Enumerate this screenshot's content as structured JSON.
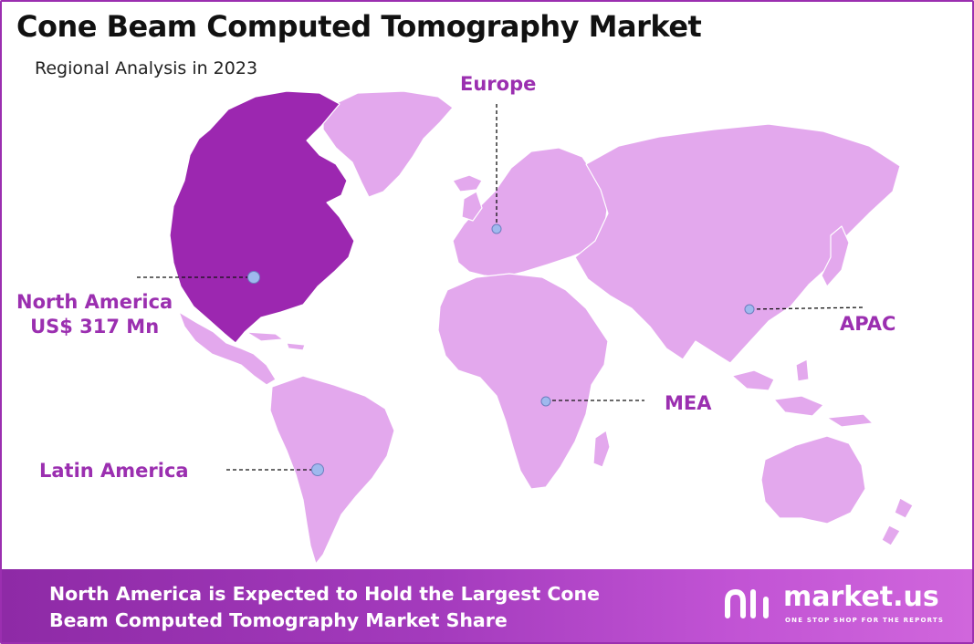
{
  "header": {
    "title": "Cone Beam Computed Tomography Market",
    "subtitle": "Regional Analysis in 2023"
  },
  "map": {
    "highlight_region": "North America",
    "colors": {
      "highlight": "#9c27b0",
      "land": "#e3a8ed",
      "marker": "#9fb9ee",
      "label": "#9b2fb0"
    },
    "regions": {
      "north_america": {
        "name": "North America",
        "value": "US$ 317 Mn"
      },
      "europe": {
        "name": "Europe"
      },
      "apac": {
        "name": "APAC"
      },
      "mea": {
        "name": "MEA"
      },
      "latin_america": {
        "name": "Latin America"
      }
    }
  },
  "footer": {
    "line1": "North America is Expected to Hold the Largest Cone",
    "line2": "Beam Computed Tomography Market Share",
    "brand": "market.us",
    "tagline": "ONE STOP SHOP FOR THE REPORTS"
  }
}
